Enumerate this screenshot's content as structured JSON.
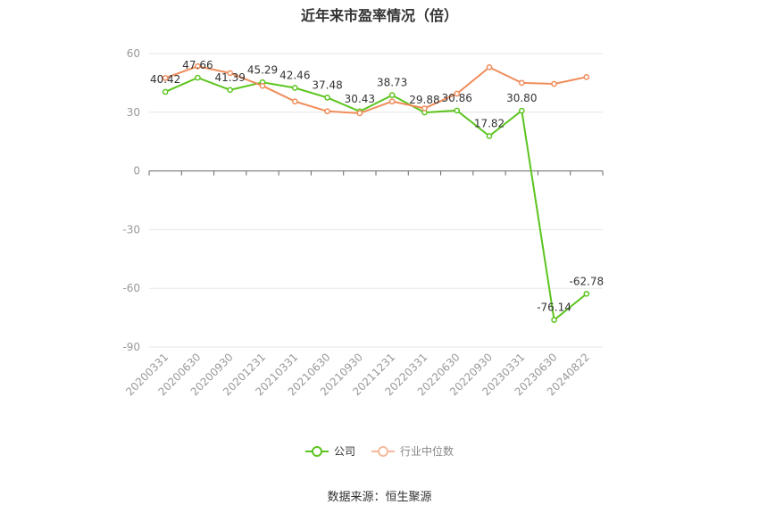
{
  "chart_data": {
    "type": "line",
    "title": "近年来市盈率情况（倍）",
    "categories": [
      "20200331",
      "20200630",
      "20200930",
      "20201231",
      "20210331",
      "20210630",
      "20210930",
      "20211231",
      "20220331",
      "20220630",
      "20220930",
      "20230331",
      "20230630",
      "20240822"
    ],
    "series": [
      {
        "name": "公司",
        "color": "#5cc41f",
        "values": [
          40.42,
          47.66,
          41.39,
          45.29,
          42.46,
          37.48,
          30.43,
          38.73,
          29.88,
          30.86,
          17.82,
          30.8,
          -76.14,
          -62.78
        ],
        "labels": [
          "40.42",
          "47.66",
          "41.39",
          "45.29",
          "42.46",
          "37.48",
          "30.43",
          "38.73",
          "29.88",
          "30.86",
          "17.82",
          "30.80",
          "-76.14",
          "-62.78"
        ]
      },
      {
        "name": "行业中位数",
        "color": "#f08c5a",
        "values": [
          47.5,
          53.5,
          50.0,
          43.5,
          35.5,
          30.5,
          29.5,
          35.5,
          32.0,
          39.5,
          53.0,
          45.0,
          44.5,
          48.0
        ]
      }
    ],
    "y_ticks": [
      "60",
      "30",
      "0",
      "-30",
      "-60",
      "-90"
    ],
    "y_tick_values": [
      60,
      30,
      0,
      -30,
      -60,
      -90
    ],
    "ylim": [
      -90,
      60
    ],
    "grid": true,
    "legend_position": "bottom-center",
    "source": "数据来源：恒生聚源"
  }
}
